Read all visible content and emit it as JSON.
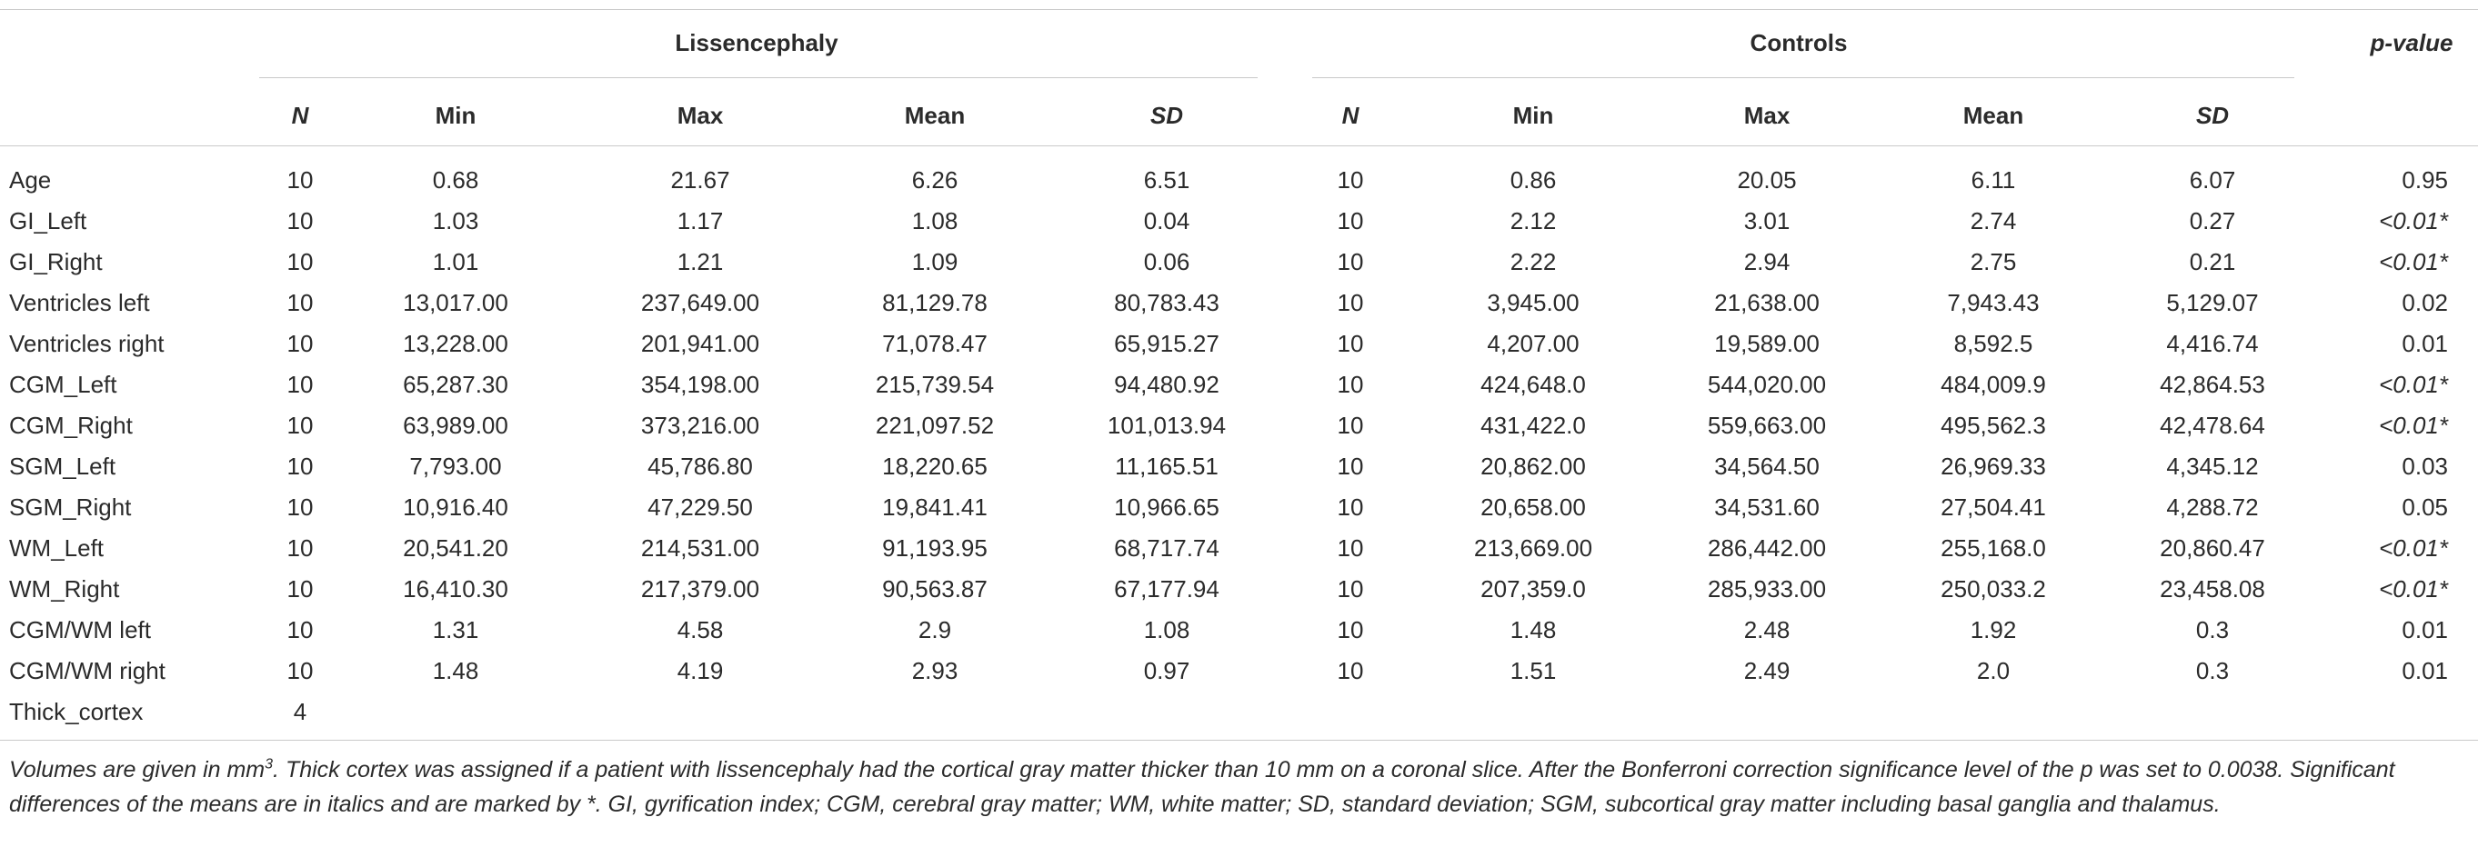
{
  "group_headers": {
    "lissencephaly": "Lissencephaly",
    "controls": "Controls",
    "pvalue": "p-value"
  },
  "subheaders": [
    "N",
    "Min",
    "Max",
    "Mean",
    "SD",
    "N",
    "Min",
    "Max",
    "Mean",
    "SD"
  ],
  "rows": [
    {
      "label": "Age",
      "cells": [
        "10",
        "0.68",
        "21.67",
        "6.26",
        "6.51",
        "10",
        "0.86",
        "20.05",
        "6.11",
        "6.07"
      ],
      "p": "0.95",
      "p_sig": false
    },
    {
      "label": "GI_Left",
      "cells": [
        "10",
        "1.03",
        "1.17",
        "1.08",
        "0.04",
        "10",
        "2.12",
        "3.01",
        "2.74",
        "0.27"
      ],
      "p": "<0.01*",
      "p_sig": true
    },
    {
      "label": "GI_Right",
      "cells": [
        "10",
        "1.01",
        "1.21",
        "1.09",
        "0.06",
        "10",
        "2.22",
        "2.94",
        "2.75",
        "0.21"
      ],
      "p": "<0.01*",
      "p_sig": true
    },
    {
      "label": "Ventricles left",
      "cells": [
        "10",
        "13,017.00",
        "237,649.00",
        "81,129.78",
        "80,783.43",
        "10",
        "3,945.00",
        "21,638.00",
        "7,943.43",
        "5,129.07"
      ],
      "p": "0.02",
      "p_sig": false
    },
    {
      "label": "Ventricles right",
      "cells": [
        "10",
        "13,228.00",
        "201,941.00",
        "71,078.47",
        "65,915.27",
        "10",
        "4,207.00",
        "19,589.00",
        "8,592.5",
        "4,416.74"
      ],
      "p": "0.01",
      "p_sig": false
    },
    {
      "label": "CGM_Left",
      "cells": [
        "10",
        "65,287.30",
        "354,198.00",
        "215,739.54",
        "94,480.92",
        "10",
        "424,648.0",
        "544,020.00",
        "484,009.9",
        "42,864.53"
      ],
      "p": "<0.01*",
      "p_sig": true
    },
    {
      "label": "CGM_Right",
      "cells": [
        "10",
        "63,989.00",
        "373,216.00",
        "221,097.52",
        "101,013.94",
        "10",
        "431,422.0",
        "559,663.00",
        "495,562.3",
        "42,478.64"
      ],
      "p": "<0.01*",
      "p_sig": true
    },
    {
      "label": "SGM_Left",
      "cells": [
        "10",
        "7,793.00",
        "45,786.80",
        "18,220.65",
        "11,165.51",
        "10",
        "20,862.00",
        "34,564.50",
        "26,969.33",
        "4,345.12"
      ],
      "p": "0.03",
      "p_sig": false
    },
    {
      "label": "SGM_Right",
      "cells": [
        "10",
        "10,916.40",
        "47,229.50",
        "19,841.41",
        "10,966.65",
        "10",
        "20,658.00",
        "34,531.60",
        "27,504.41",
        "4,288.72"
      ],
      "p": "0.05",
      "p_sig": false
    },
    {
      "label": "WM_Left",
      "cells": [
        "10",
        "20,541.20",
        "214,531.00",
        "91,193.95",
        "68,717.74",
        "10",
        "213,669.00",
        "286,442.00",
        "255,168.0",
        "20,860.47"
      ],
      "p": "<0.01*",
      "p_sig": true
    },
    {
      "label": "WM_Right",
      "cells": [
        "10",
        "16,410.30",
        "217,379.00",
        "90,563.87",
        "67,177.94",
        "10",
        "207,359.0",
        "285,933.00",
        "250,033.2",
        "23,458.08"
      ],
      "p": "<0.01*",
      "p_sig": true
    },
    {
      "label": "CGM/WM left",
      "cells": [
        "10",
        "1.31",
        "4.58",
        "2.9",
        "1.08",
        "10",
        "1.48",
        "2.48",
        "1.92",
        "0.3"
      ],
      "p": "0.01",
      "p_sig": false
    },
    {
      "label": "CGM/WM right",
      "cells": [
        "10",
        "1.48",
        "4.19",
        "2.93",
        "0.97",
        "10",
        "1.51",
        "2.49",
        "2.0",
        "0.3"
      ],
      "p": "0.01",
      "p_sig": false
    },
    {
      "label": "Thick_cortex",
      "cells": [
        "4",
        "",
        "",
        "",
        "",
        "",
        "",
        "",
        "",
        ""
      ],
      "p": "",
      "p_sig": false
    }
  ],
  "note": {
    "part1": "Volumes are given in mm",
    "sup": "3",
    "part2": ". Thick cortex was assigned if a patient with lissencephaly had the cortical gray matter thicker than 10 mm on a coronal slice. After the Bonferroni correction significance level of the p was set to 0.0038. Significant differences of the means are in italics and are marked by *. GI, gyrification index; CGM, cerebral gray matter; WM, white matter; SD, standard deviation; SGM, subcortical gray matter including basal ganglia and thalamus."
  }
}
